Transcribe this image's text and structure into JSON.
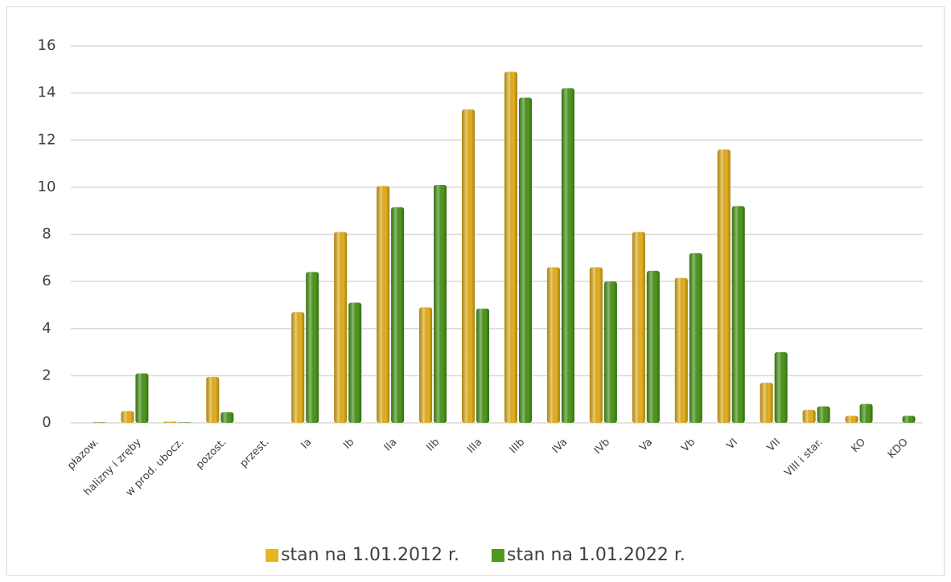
{
  "chart_data": {
    "type": "bar",
    "categories": [
      "płazow.",
      "halizny i zręby",
      "w prod. ubocz.",
      "pozost.",
      "przest.",
      "Ia",
      "Ib",
      "IIa",
      "IIb",
      "IIIa",
      "IIIb",
      "IVa",
      "IVb",
      "Va",
      "Vb",
      "VI",
      "VII",
      "VIII i star.",
      "KO",
      "KDO"
    ],
    "series": [
      {
        "name": "stan na 1.01.2012 r.",
        "color": "#e8b420",
        "values": [
          0,
          0.5,
          0.05,
          1.95,
          0,
          4.7,
          8.1,
          10.05,
          4.9,
          13.3,
          14.9,
          6.6,
          6.6,
          8.1,
          6.15,
          11.6,
          1.7,
          0.55,
          0.3,
          0
        ]
      },
      {
        "name": "stan na 1.01.2022 r.",
        "color": "#4e9a1e",
        "values": [
          0.02,
          2.1,
          0.02,
          0.45,
          0,
          6.4,
          5.1,
          9.15,
          10.1,
          4.85,
          13.8,
          14.2,
          6.0,
          6.45,
          7.2,
          9.2,
          3.0,
          0.7,
          0.8,
          0.3
        ]
      }
    ],
    "ylim": [
      0,
      16
    ],
    "yticks": [
      0,
      2,
      4,
      6,
      8,
      10,
      12,
      14,
      16
    ],
    "grid": true,
    "legend": "bottom"
  }
}
